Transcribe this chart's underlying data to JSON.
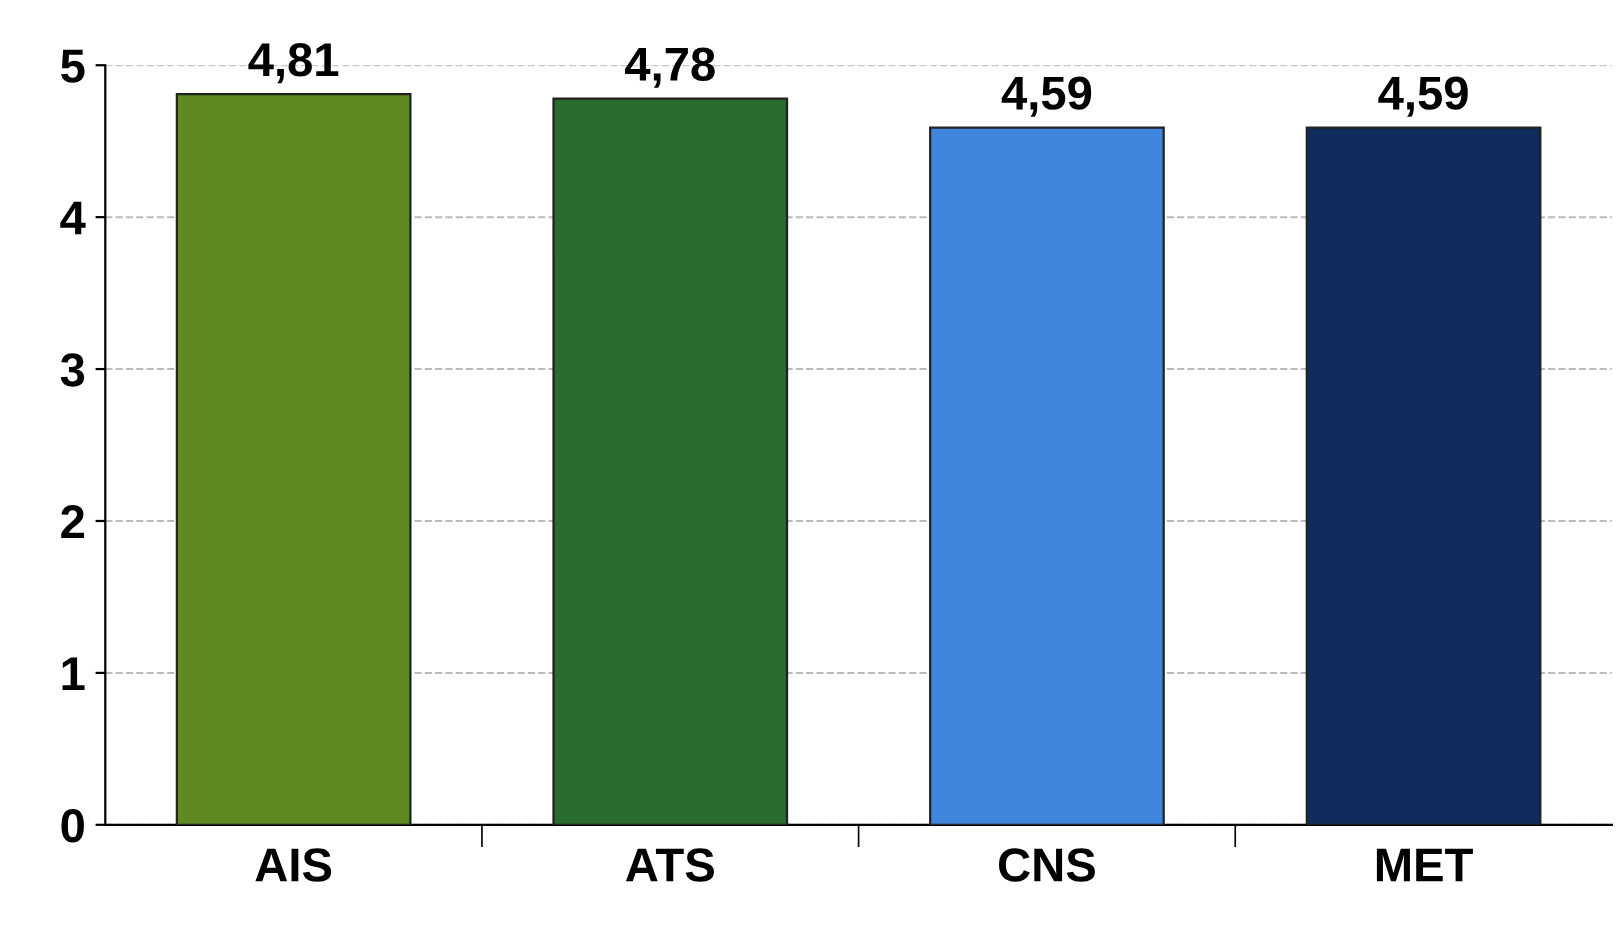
{
  "chart_data": {
    "type": "bar",
    "categories": [
      "AIS",
      "ATS",
      "CNS",
      "MET"
    ],
    "values": [
      4.81,
      4.78,
      4.59,
      4.59
    ],
    "value_labels": [
      "4,81",
      "4,78",
      "4,59",
      "4,59"
    ],
    "colors": [
      "#5f8a22",
      "#2a6b30",
      "#3f86dc",
      "#0f2c5c"
    ],
    "ylim": [
      0,
      5
    ],
    "yticks": [
      0,
      1,
      2,
      3,
      4,
      5
    ],
    "grid": "y"
  }
}
